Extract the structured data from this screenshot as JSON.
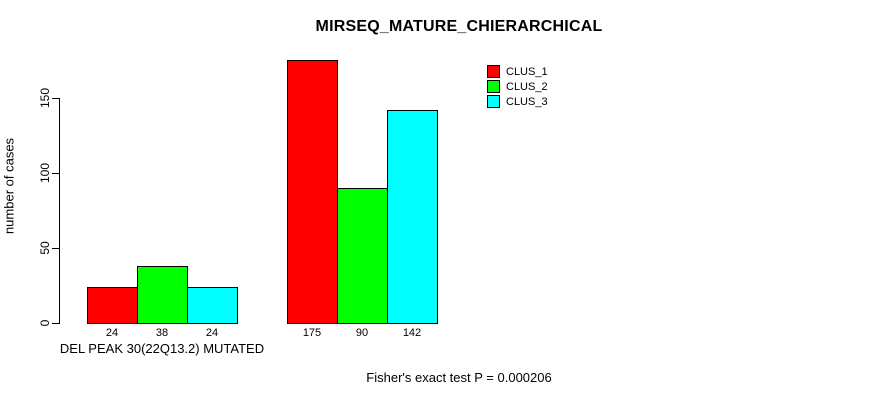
{
  "title": "MIRSEQ_MATURE_CHIERARCHICAL",
  "chart_data": {
    "type": "bar",
    "title": "MIRSEQ_MATURE_CHIERARCHICAL",
    "xlabel": "",
    "ylabel": "number of cases",
    "ylim": [
      0,
      175
    ],
    "yticks": [
      0,
      50,
      100,
      150
    ],
    "grid": false,
    "legend_position": "top-right",
    "series": [
      {
        "name": "CLUS_1",
        "color": "#ff0000"
      },
      {
        "name": "CLUS_2",
        "color": "#00ff00"
      },
      {
        "name": "CLUS_3",
        "color": "#00ffff"
      }
    ],
    "groups": [
      {
        "label": "DEL PEAK 30(22Q13.2) MUTATED",
        "values": [
          24,
          38,
          24
        ]
      },
      {
        "label": "",
        "values": [
          175,
          90,
          142
        ]
      }
    ],
    "bar_value_labels_shown": true,
    "annotation": "Fisher's exact test P = 0.000206"
  }
}
